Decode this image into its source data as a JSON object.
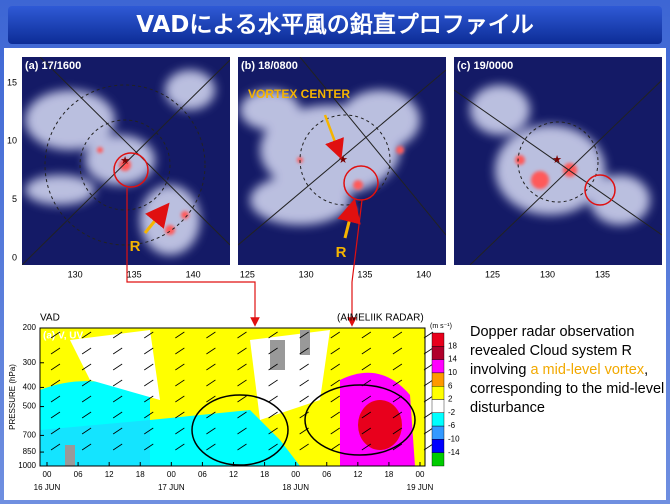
{
  "header": {
    "title": "VADによる水平風の鉛直プロファイル"
  },
  "lat_ticks": [
    15,
    10,
    5,
    0
  ],
  "panels": [
    {
      "label": "(a) 17/1600",
      "x_ticks": [
        130,
        135,
        140
      ],
      "marker": "R"
    },
    {
      "label": "(b) 18/0800",
      "x_ticks": [
        125,
        130,
        135,
        140
      ],
      "annotation": "VORTEX CENTER",
      "marker": "R"
    },
    {
      "label": "(c) 19/0000",
      "x_ticks": [
        125,
        130,
        135
      ]
    }
  ],
  "chart": {
    "title": "VAD",
    "station": "(AIMELIIK RADAR)",
    "panel_label": "(a) V, UV",
    "y_label": "PRESSURE (hPa)",
    "y_ticks": [
      200,
      300,
      400,
      500,
      700,
      850,
      1000
    ],
    "x_ticks": [
      "00",
      "06",
      "12",
      "18",
      "00",
      "06",
      "12",
      "18",
      "00",
      "06",
      "12",
      "18",
      "00"
    ],
    "dates": [
      "16 JUN",
      "17 JUN",
      "18 JUN",
      "19 JUN"
    ],
    "colorbar": {
      "unit": "(m s⁻¹)",
      "ticks": [
        18,
        14,
        10,
        6,
        2,
        -2,
        -6,
        -10,
        -14
      ]
    }
  },
  "caption": {
    "parts": [
      "Dopper radar observation revealed Cloud system R involving ",
      "a mid-level vortex",
      ", corresponding to the mid-level disturbance"
    ]
  }
}
